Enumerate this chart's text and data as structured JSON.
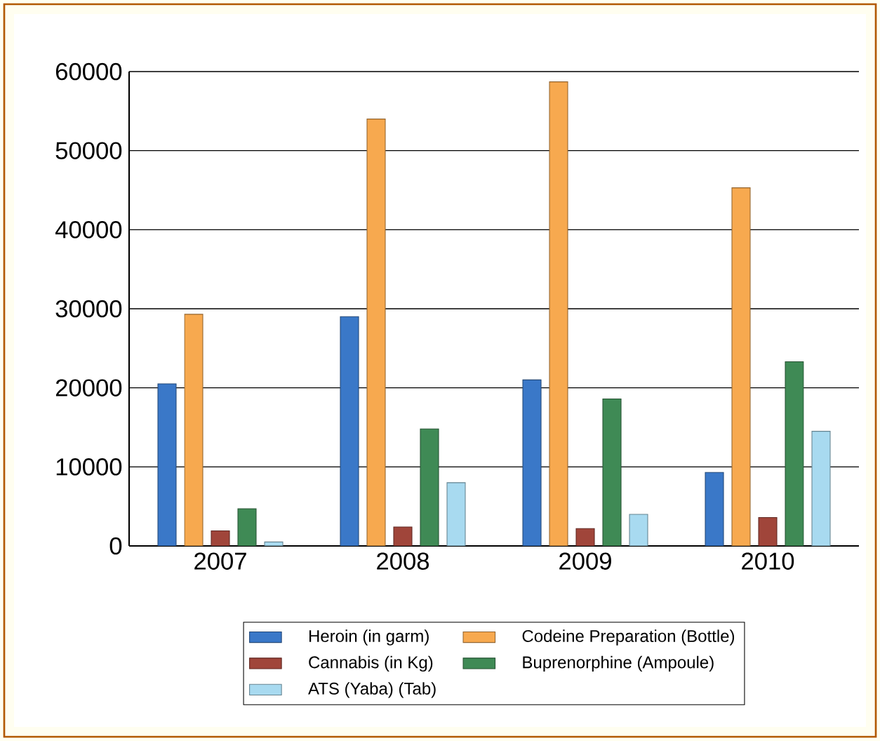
{
  "chart_data": {
    "type": "bar",
    "categories": [
      "2007",
      "2008",
      "2009",
      "2010"
    ],
    "series": [
      {
        "name": "Heroin (in garm)",
        "color": "#3a78c8",
        "values": [
          20500,
          29000,
          21000,
          9300
        ]
      },
      {
        "name": "Codeine Preparation (Bottle)",
        "color": "#f7a94f",
        "values": [
          29300,
          54000,
          58700,
          45300
        ]
      },
      {
        "name": "Cannabis (in Kg)",
        "color": "#a0453a",
        "values": [
          1900,
          2400,
          2200,
          3600
        ]
      },
      {
        "name": "Buprenorphine (Ampoule)",
        "color": "#3f8a55",
        "values": [
          4700,
          14800,
          18600,
          23300
        ]
      },
      {
        "name": "ATS (Yaba) (Tab)",
        "color": "#a8daf0",
        "values": [
          500,
          8000,
          4000,
          14500
        ]
      }
    ],
    "ylim": [
      0,
      60000
    ],
    "yticks": [
      0,
      10000,
      20000,
      30000,
      40000,
      50000,
      60000
    ],
    "grid": "y",
    "legend": "bottom"
  }
}
